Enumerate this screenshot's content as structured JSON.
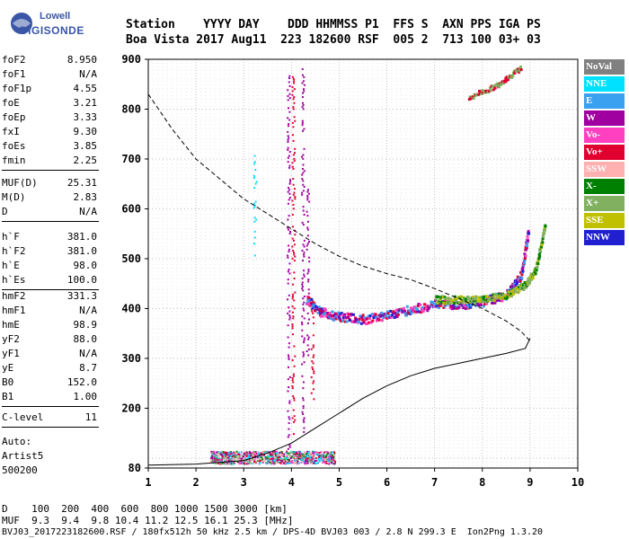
{
  "logo": {
    "brand_top": "Lowell",
    "brand_name": "DIGISONDE"
  },
  "header": {
    "line1": "Station    YYYY DAY    DDD HHMMSS P1  FFS S  AXN PPS IGA PS",
    "line2": "Boa Vista 2017 Aug11  223 182600 RSF  005 2  713 100 03+ 03"
  },
  "parameters": [
    {
      "group": 1,
      "items": [
        {
          "key": "foF2",
          "value": "8.950"
        },
        {
          "key": "foF1",
          "value": "N/A"
        },
        {
          "key": "foF1p",
          "value": "4.55"
        },
        {
          "key": "foE",
          "value": "3.21"
        },
        {
          "key": "foEp",
          "value": "3.33"
        },
        {
          "key": "fxI",
          "value": "9.30"
        },
        {
          "key": "foEs",
          "value": "3.85"
        },
        {
          "key": "fmin",
          "value": "2.25"
        }
      ]
    },
    {
      "group": 2,
      "items": [
        {
          "key": "MUF(D)",
          "value": "25.31"
        },
        {
          "key": "M(D)",
          "value": "2.83"
        },
        {
          "key": "D",
          "value": "N/A"
        }
      ]
    },
    {
      "group": 3,
      "items": [
        {
          "key": "h`F",
          "value": "381.0"
        },
        {
          "key": "h`F2",
          "value": "381.0"
        },
        {
          "key": "h`E",
          "value": "98.0"
        },
        {
          "key": "h`Es",
          "value": "100.0"
        }
      ]
    },
    {
      "group": 4,
      "items": [
        {
          "key": "hmF2",
          "value": "331.3"
        },
        {
          "key": "hmF1",
          "value": "N/A"
        },
        {
          "key": "hmE",
          "value": "98.9"
        },
        {
          "key": "yF2",
          "value": "88.0"
        },
        {
          "key": "yF1",
          "value": "N/A"
        },
        {
          "key": "yE",
          "value": "8.7"
        },
        {
          "key": "B0",
          "value": "152.0"
        },
        {
          "key": "B1",
          "value": "1.00"
        }
      ]
    },
    {
      "group": 5,
      "items": [
        {
          "key": "C-level",
          "value": "11"
        }
      ]
    }
  ],
  "autoscaling": {
    "line1": "Auto:",
    "line2": "Artist5",
    "line3": "500200"
  },
  "legend": [
    {
      "label": "NoVal",
      "color": "#808080"
    },
    {
      "label": "NNE",
      "color": "#00e0ff"
    },
    {
      "label": "E",
      "color": "#3aa0f0"
    },
    {
      "label": "W",
      "color": "#a000a0"
    },
    {
      "label": "Vo-",
      "color": "#ff40c0"
    },
    {
      "label": "Vo+",
      "color": "#e00030"
    },
    {
      "label": "SSW",
      "color": "#ffb0b0"
    },
    {
      "label": "X-",
      "color": "#008000"
    },
    {
      "label": "X+",
      "color": "#80b060"
    },
    {
      "label": "SSE",
      "color": "#c0c000"
    },
    {
      "label": "NNW",
      "color": "#2020d0"
    }
  ],
  "bottom": {
    "d_line": "D    100  200  400  600  800 1000 1500 3000 [km]",
    "muf_line": "MUF  9.3  9.4  9.8 10.4 11.2 12.5 16.1 25.3 [MHz]",
    "file_line": "BVJ03_2017223182600.RSF / 180fx512h 50 kHz 2.5 km / DPS-4D BVJ03 003 / 2.8 N 299.3 E  Ion2Png 1.3.20"
  },
  "chart_data": {
    "type": "scatter",
    "x_ticks": [
      "1",
      "2",
      "3",
      "4",
      "5",
      "6",
      "7",
      "8",
      "9",
      "10"
    ],
    "y_ticks": [
      "80",
      "200",
      "300",
      "400",
      "500",
      "600",
      "700",
      "800",
      "900"
    ],
    "xlim": [
      1,
      10
    ],
    "ylim": [
      80,
      900
    ],
    "xlabel": "",
    "ylabel": "",
    "grid": true,
    "legend_position": "right",
    "mufd_curve_x": [
      1.0,
      1.5,
      2.0,
      2.5,
      3.0,
      3.5,
      4.0,
      4.5,
      5.0,
      5.5,
      6.0,
      6.5,
      7.0,
      7.5,
      8.0,
      8.5,
      8.8,
      9.0
    ],
    "mufd_curve_y": [
      830,
      760,
      700,
      660,
      620,
      590,
      560,
      530,
      505,
      485,
      470,
      458,
      440,
      420,
      400,
      375,
      355,
      335
    ],
    "profile_lower_x": [
      1.0,
      2.0,
      3.0,
      3.5,
      4.0,
      4.5,
      5.0,
      5.5,
      6.0,
      6.5,
      7.0,
      7.5,
      8.0,
      8.5,
      8.9,
      9.0
    ],
    "profile_lower_y": [
      86,
      88,
      95,
      110,
      130,
      160,
      190,
      220,
      245,
      265,
      280,
      290,
      300,
      310,
      320,
      340
    ],
    "f2_trace_x": [
      4.3,
      4.6,
      5.0,
      5.5,
      6.0,
      6.5,
      7.0,
      7.5,
      8.0,
      8.5,
      8.8,
      8.95
    ],
    "f2_trace_y": [
      420,
      395,
      385,
      380,
      390,
      400,
      410,
      410,
      415,
      430,
      470,
      560
    ],
    "x_trace_x": [
      7.0,
      7.5,
      8.0,
      8.5,
      8.9,
      9.1,
      9.3
    ],
    "x_trace_y": [
      420,
      420,
      420,
      430,
      450,
      480,
      570
    ],
    "es_band_x": [
      2.3,
      4.9
    ],
    "es_band_y": [
      90,
      115
    ]
  }
}
